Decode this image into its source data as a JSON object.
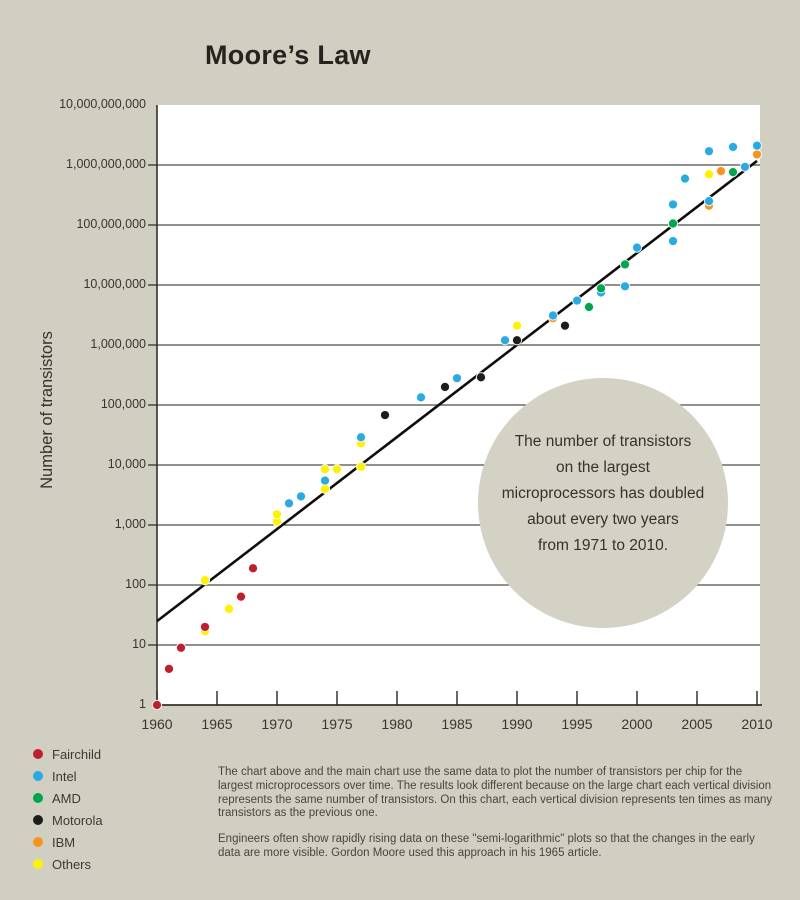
{
  "page": {
    "background": "#d1cec2"
  },
  "chart_data": {
    "type": "scatter",
    "title": "Moore’s Law",
    "xlabel": "",
    "ylabel": "Number of transistors",
    "x_axis": {
      "min": 1960,
      "max": 2010,
      "tick_values": [
        1960,
        1965,
        1970,
        1975,
        1980,
        1985,
        1990,
        1995,
        2000,
        2005,
        2010
      ],
      "tick_labels": [
        "1960",
        "1965",
        "1970",
        "1975",
        "1980",
        "1985",
        "1990",
        "1995",
        "2000",
        "2005",
        "2010"
      ]
    },
    "y_axis": {
      "scale": "log",
      "min": 1,
      "max": 10000000000,
      "tick_values": [
        10000000000,
        1000000000,
        100000000,
        10000000,
        1000000,
        100000,
        10000,
        1000,
        100,
        10,
        1
      ],
      "tick_labels": [
        "10,000,000,000",
        "1,000,000,000",
        "100,000,000",
        "10,000,000",
        "1,000,000",
        "100,000",
        "10,000",
        "1,000",
        "100",
        "10",
        "1"
      ]
    },
    "grid": "horizontal",
    "legend_position": "bottom-left",
    "series": [
      {
        "name": "Fairchild",
        "color": "#be1e2d",
        "points": [
          [
            1960,
            1
          ],
          [
            1961,
            4
          ],
          [
            1962,
            9
          ],
          [
            1964,
            20
          ],
          [
            1967,
            64
          ],
          [
            1968,
            190
          ]
        ]
      },
      {
        "name": "Intel",
        "color": "#29abe2",
        "points": [
          [
            1971,
            2300
          ],
          [
            1972,
            3000
          ],
          [
            1974,
            5500
          ],
          [
            1977,
            29000
          ],
          [
            1982,
            134000
          ],
          [
            1985,
            280000
          ],
          [
            1989,
            1200000
          ],
          [
            1993,
            3100000
          ],
          [
            1995,
            5500000
          ],
          [
            1997,
            7500000
          ],
          [
            1999,
            9500000
          ],
          [
            2000,
            42000000
          ],
          [
            2003,
            54000000
          ],
          [
            2003,
            220000000
          ],
          [
            2004,
            592000000
          ],
          [
            2006,
            250000000
          ],
          [
            2006,
            1700000000
          ],
          [
            2008,
            2000000000
          ],
          [
            2009,
            930000000
          ],
          [
            2010,
            2100000000
          ]
        ]
      },
      {
        "name": "AMD",
        "color": "#00a550",
        "points": [
          [
            1996,
            4300000
          ],
          [
            1997,
            8800000
          ],
          [
            1999,
            22000000
          ],
          [
            2003,
            106000000
          ],
          [
            2008,
            760000000
          ]
        ]
      },
      {
        "name": "Motorola",
        "color": "#1d1c1a",
        "points": [
          [
            1979,
            68000
          ],
          [
            1984,
            200000
          ],
          [
            1987,
            290000
          ],
          [
            1990,
            1200000
          ],
          [
            1994,
            2100000
          ]
        ]
      },
      {
        "name": "IBM",
        "color": "#f7941d",
        "points": [
          [
            1993,
            2800000
          ],
          [
            2006,
            210000000
          ],
          [
            2007,
            790000000
          ],
          [
            2010,
            1500000000
          ]
        ]
      },
      {
        "name": "Others",
        "color": "#fff200",
        "points": [
          [
            1964,
            17
          ],
          [
            1964,
            120
          ],
          [
            1966,
            40
          ],
          [
            1970,
            1150
          ],
          [
            1970,
            1500
          ],
          [
            1974,
            4000
          ],
          [
            1974,
            8500
          ],
          [
            1975,
            8500
          ],
          [
            1977,
            9300
          ],
          [
            1977,
            23000
          ],
          [
            1990,
            2100000
          ],
          [
            2006,
            700000000
          ]
        ]
      }
    ],
    "trendline": {
      "start": {
        "year": 1960,
        "value": 25
      },
      "end": {
        "year": 2010,
        "value": 1170000000
      }
    }
  },
  "legend": {
    "items": [
      {
        "label": "Fairchild",
        "color": "#be1e2d"
      },
      {
        "label": "Intel",
        "color": "#29abe2"
      },
      {
        "label": "AMD",
        "color": "#00a550"
      },
      {
        "label": "Motorola",
        "color": "#1d1c1a"
      },
      {
        "label": "IBM",
        "color": "#f7941d"
      },
      {
        "label": "Others",
        "color": "#fff200"
      }
    ]
  },
  "annotation": {
    "fill": "#d4d1c5",
    "lines": [
      "The number of transistors",
      "on the largest",
      "microprocessors has doubled",
      "about every two years",
      "from 1971 to 2010."
    ]
  },
  "captions": {
    "para1": "The chart above and the main chart use the same data to plot the number of transistors per chip for the largest microprocessors over time. The results look different because on the large chart each vertical division represents the same number of transistors. On this chart, each vertical division represents ten times as many transistors as the previous one.",
    "para2": "Engineers often show rapidly rising data on these \"semi-logarithmic\" plots so that the changes in the early data are more visible. Gordon Moore used this approach in his 1965 article."
  }
}
